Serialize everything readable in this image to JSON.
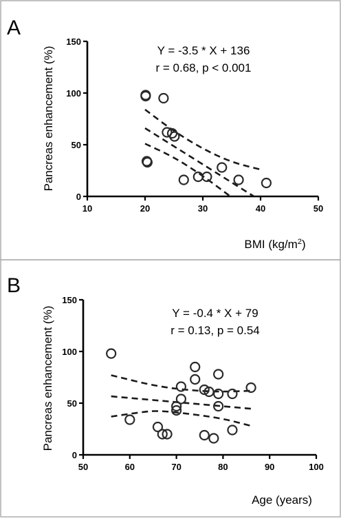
{
  "chart_data": [
    {
      "type": "scatter",
      "panel_label": "A",
      "ylabel": "Pancreas enhancement (%)",
      "xlabel": "BMI (kg/m",
      "xlabel_sup": "2",
      "xlabel_suffix": ")",
      "equation": "Y = -3.5 * X + 136",
      "stats": "r = 0.68, p < 0.001",
      "xlim": [
        10,
        50
      ],
      "ylim": [
        0,
        150
      ],
      "xticks": [
        10,
        20,
        30,
        40,
        50
      ],
      "yticks": [
        0,
        50,
        100,
        150
      ],
      "grid": false,
      "points": {
        "x": [
          20.1,
          20.1,
          20.3,
          20.4,
          23.2,
          23.8,
          24.7,
          25.1,
          26.7,
          29.2,
          30.7,
          33.3,
          36.2,
          41.0
        ],
        "y": [
          98,
          97,
          34,
          33,
          95,
          62,
          61,
          58,
          16,
          19,
          19,
          28,
          16,
          13
        ]
      },
      "fit": {
        "slope": -3.5,
        "intercept": 136,
        "x_range": [
          20,
          40
        ]
      },
      "ci_upper": {
        "x": [
          20,
          25,
          30,
          35,
          40
        ],
        "y": [
          84,
          63,
          46,
          33,
          26
        ]
      },
      "ci_lower": {
        "x": [
          20,
          25,
          30,
          35,
          40
        ],
        "y": [
          51,
          38,
          20,
          -1,
          -22
        ]
      }
    },
    {
      "type": "scatter",
      "panel_label": "B",
      "ylabel": "Pancreas enhancement (%)",
      "xlabel": "Age (years)",
      "equation": "Y = -0.4 * X + 79",
      "stats": "r = 0.13, p = 0.54",
      "xlim": [
        50,
        100
      ],
      "ylim": [
        0,
        150
      ],
      "xticks": [
        50,
        60,
        70,
        80,
        90,
        100
      ],
      "yticks": [
        0,
        50,
        100,
        150
      ],
      "grid": false,
      "points": {
        "x": [
          56,
          60,
          66,
          67,
          68,
          70,
          70,
          71,
          71,
          74,
          74,
          76,
          76,
          77,
          78,
          79,
          79,
          79,
          82,
          82,
          86
        ],
        "y": [
          98,
          34,
          27,
          20,
          20,
          43,
          47,
          54,
          66,
          85,
          73,
          63,
          19,
          61,
          16,
          78,
          59,
          47,
          59,
          24,
          65
        ]
      },
      "fit": {
        "slope": -0.4,
        "intercept": 79,
        "x_range": [
          56,
          86
        ]
      },
      "ci_upper": {
        "x": [
          56,
          66,
          74,
          80,
          86
        ],
        "y": [
          77,
          66,
          62,
          61,
          62
        ]
      },
      "ci_lower": {
        "x": [
          56,
          62,
          66,
          74,
          80,
          86
        ],
        "y": [
          37,
          41,
          43,
          39,
          35,
          28
        ]
      }
    }
  ]
}
